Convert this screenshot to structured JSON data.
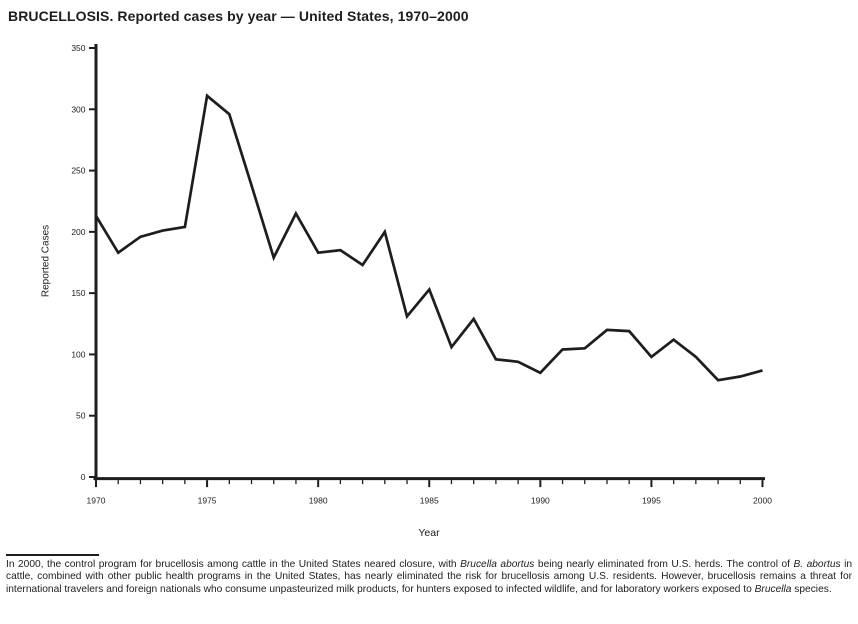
{
  "title": "BRUCELLOSIS. Reported cases by year — United States, 1970–2000",
  "chart_data": {
    "type": "line",
    "title": "BRUCELLOSIS. Reported cases by year — United States, 1970–2000",
    "xlabel": "Year",
    "ylabel": "Reported Cases",
    "xlim": [
      1970,
      2000
    ],
    "ylim": [
      0,
      350
    ],
    "yticks": [
      0,
      50,
      100,
      150,
      200,
      250,
      300,
      350
    ],
    "xticks_labeled": [
      1970,
      1975,
      1980,
      1985,
      1990,
      1995,
      2000
    ],
    "xticks_minor_every_year": true,
    "grid": false,
    "legend": "none",
    "line_color": "#1d1d1b",
    "axis_color": "#1d1d1b",
    "x": [
      1970,
      1971,
      1972,
      1973,
      1974,
      1975,
      1976,
      1977,
      1978,
      1979,
      1980,
      1981,
      1982,
      1983,
      1984,
      1985,
      1986,
      1987,
      1988,
      1989,
      1990,
      1991,
      1992,
      1993,
      1994,
      1995,
      1996,
      1997,
      1998,
      1999,
      2000
    ],
    "values": [
      213,
      183,
      196,
      201,
      204,
      311,
      296,
      238,
      179,
      215,
      183,
      185,
      173,
      200,
      131,
      153,
      106,
      129,
      96,
      94,
      85,
      104,
      105,
      120,
      119,
      98,
      112,
      98,
      79,
      82,
      87
    ]
  },
  "footnote": {
    "segments": [
      {
        "t": "In 2000, the control program for brucellosis among cattle in the United States neared closure, with ",
        "i": false
      },
      {
        "t": "Brucella abortus",
        "i": true
      },
      {
        "t": "  being nearly eliminated from U.S. herds. The control of ",
        "i": false
      },
      {
        "t": "B. abortus",
        "i": true
      },
      {
        "t": " in cattle, combined with other public health programs in the United States, has nearly eliminated the risk for brucellosis among U.S. residents. However, brucellosis remains a threat for international travelers and foreign nationals who consume unpasteurized milk products, for hunters exposed to infected wildlife, and for laboratory workers exposed to ",
        "i": false
      },
      {
        "t": "Brucella",
        "i": true
      },
      {
        "t": " species.",
        "i": false
      }
    ]
  }
}
